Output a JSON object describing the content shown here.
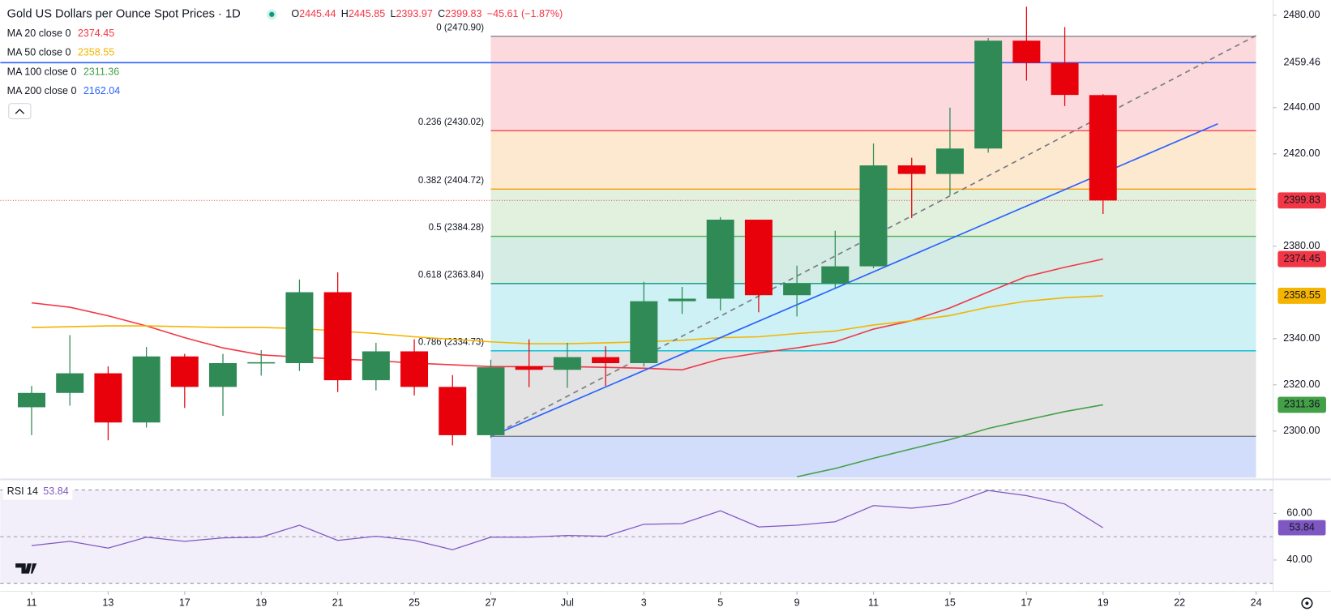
{
  "header": {
    "title": "Gold US Dollars per Ounce Spot Prices · 1D",
    "ohlc": [
      {
        "label": "O",
        "value": "2445.44"
      },
      {
        "label": "H",
        "value": "2445.85"
      },
      {
        "label": "L",
        "value": "2393.97"
      },
      {
        "label": "C",
        "value": "2399.83"
      }
    ],
    "change": "−45.61 (−1.87%)"
  },
  "chart_data": [
    {
      "type": "candlestick",
      "up_color": "#2f8a56",
      "down_color": "#e8000b",
      "candles": {
        "open": [
          2310.3,
          2316.5,
          2325.0,
          2303.7,
          2332.3,
          2319.1,
          2329.4,
          2329.4,
          2360.1,
          2322.0,
          2334.5,
          2319.1,
          2298.2,
          2328.0,
          2326.5,
          2332.0,
          2329.4,
          2356.2,
          2357.3,
          2391.5,
          2358.8,
          2363.9,
          2371.3,
          2415.0,
          2411.3,
          2422.3,
          2469.0,
          2459.4,
          2445.44
        ],
        "high": [
          2319.5,
          2341.5,
          2328.0,
          2336.4,
          2333.4,
          2333.4,
          2335.0,
          2365.6,
          2368.7,
          2338.2,
          2339.7,
          2324.2,
          2330.9,
          2339.7,
          2338.2,
          2336.7,
          2364.6,
          2362.4,
          2392.6,
          2391.5,
          2371.6,
          2386.7,
          2424.5,
          2418.3,
          2440.0,
          2470.1,
          2483.7,
          2474.9,
          2445.85
        ],
        "low": [
          2298.2,
          2311.0,
          2296.0,
          2301.5,
          2310.0,
          2306.6,
          2324.0,
          2326.0,
          2316.9,
          2317.6,
          2315.4,
          2293.8,
          2297.0,
          2319.0,
          2318.7,
          2319.5,
          2327.9,
          2350.7,
          2352.2,
          2351.4,
          2349.6,
          2361.7,
          2370.5,
          2392.2,
          2402.1,
          2420.5,
          2451.7,
          2440.7,
          2393.97
        ],
        "close": [
          2316.5,
          2325.0,
          2303.7,
          2332.3,
          2319.1,
          2329.4,
          2329.8,
          2360.1,
          2322.0,
          2334.5,
          2319.1,
          2298.2,
          2327.6,
          2326.5,
          2332.0,
          2329.4,
          2356.2,
          2357.3,
          2391.5,
          2358.8,
          2363.9,
          2371.3,
          2415.0,
          2411.3,
          2422.3,
          2469.0,
          2459.4,
          2445.5,
          2399.83
        ]
      },
      "xlim": [
        -0.82,
        32
      ],
      "ylim": [
        2279.8,
        2486.6
      ],
      "xticks": [
        {
          "value": 0,
          "label": "11"
        },
        {
          "value": 2,
          "label": "13"
        },
        {
          "value": 4,
          "label": "17"
        },
        {
          "value": 6,
          "label": "19"
        },
        {
          "value": 8,
          "label": "21"
        },
        {
          "value": 10,
          "label": "25"
        },
        {
          "value": 12,
          "label": "27"
        },
        {
          "value": 14,
          "label": "Jul"
        },
        {
          "value": 16,
          "label": "3"
        },
        {
          "value": 18,
          "label": "5"
        },
        {
          "value": 20,
          "label": "9"
        },
        {
          "value": 22,
          "label": "11"
        },
        {
          "value": 24,
          "label": "15"
        },
        {
          "value": 26,
          "label": "17"
        },
        {
          "value": 28,
          "label": "19"
        },
        {
          "value": 30,
          "label": "22"
        },
        {
          "value": 32,
          "label": "24"
        }
      ],
      "yticks": [
        {
          "value": 2480,
          "label": "2480.00"
        },
        {
          "value": 2440,
          "label": "2440.00"
        },
        {
          "value": 2420,
          "label": "2420.00"
        },
        {
          "value": 2380,
          "label": "2380.00"
        },
        {
          "value": 2340,
          "label": "2340.00"
        },
        {
          "value": 2320,
          "label": "2320.00"
        },
        {
          "value": 2300,
          "label": "2300.00"
        }
      ],
      "series": [
        {
          "name": "MA 20 close 0",
          "color": "#f23645",
          "last": 2374.45,
          "values": [
            2355.5,
            2353.6,
            2349.9,
            2345.5,
            2340.4,
            2336.0,
            2333.0,
            2332.0,
            2331.2,
            2330.5,
            2329.4,
            2328.7,
            2327.9,
            2327.9,
            2327.9,
            2327.6,
            2327.2,
            2326.5,
            2331.2,
            2333.8,
            2336.0,
            2338.6,
            2344.1,
            2347.8,
            2353.3,
            2360.2,
            2366.9,
            2370.9,
            2374.45
          ]
        },
        {
          "name": "MA 50 close 0",
          "color": "#f5b400",
          "last": 2358.55,
          "values": [
            2344.8,
            2345.2,
            2345.5,
            2345.5,
            2345.2,
            2344.8,
            2344.8,
            2344.4,
            2343.3,
            2342.2,
            2340.8,
            2339.7,
            2338.6,
            2337.8,
            2337.8,
            2338.2,
            2338.6,
            2339.3,
            2340.4,
            2340.8,
            2342.2,
            2343.3,
            2345.9,
            2347.8,
            2350.0,
            2353.6,
            2356.2,
            2357.7,
            2358.55
          ]
        },
        {
          "name": "MA 100 close 0",
          "color": "#43a047",
          "last": 2311.36,
          "values": [
            null,
            null,
            null,
            null,
            null,
            null,
            null,
            null,
            null,
            null,
            null,
            null,
            null,
            null,
            null,
            null,
            null,
            null,
            null,
            null,
            2280.2,
            2283.8,
            2288.2,
            2292.3,
            2296.3,
            2301.1,
            2304.8,
            2308.4,
            2311.36
          ]
        },
        {
          "name": "MA 200 close 0",
          "color": "#2962ff",
          "last": 2162.04
        }
      ],
      "fib_start": 12,
      "fib_levels": [
        {
          "price": 2470.9,
          "label": "0 (2470.90)",
          "color": "#787b86",
          "fill": "#fcd9dc"
        },
        {
          "price": 2430.02,
          "label": "0.236 (2430.02)",
          "color": "#f23645",
          "fill": "#fde9cf"
        },
        {
          "price": 2404.72,
          "label": "0.382 (2404.72)",
          "color": "#ff9800",
          "fill": "#e2f1de"
        },
        {
          "price": 2384.28,
          "label": "0.5 (2384.28)",
          "color": "#4caf50",
          "fill": "#d4ece4"
        },
        {
          "price": 2363.84,
          "label": "0.618 (2363.84)",
          "color": "#089981",
          "fill": "#cdf1f4"
        },
        {
          "price": 2334.73,
          "label": "0.786 (2334.73)",
          "color": "#00bcd4",
          "fill": "#e3e3e4"
        },
        {
          "price": 2297.7,
          "color": "#787b86",
          "fill": "#d2ddfb"
        }
      ],
      "trendlines": [
        {
          "color": "#2962ff",
          "dashed": false,
          "from": [
            12,
            2297.7
          ],
          "to": [
            31,
            2433
          ]
        },
        {
          "color": "#787b86",
          "dashed": true,
          "from": [
            12,
            2297.7
          ],
          "to": [
            32,
            2471.2
          ]
        }
      ],
      "hline": {
        "price": 2459.46,
        "color": "#2962ff"
      },
      "last_price_color": "#f23645"
    },
    {
      "type": "line",
      "name": "RSI 14",
      "color": "#7e57c2",
      "last": 53.84,
      "values": [
        46.2,
        48.0,
        45.1,
        49.8,
        48.0,
        49.5,
        49.8,
        54.9,
        48.4,
        50.2,
        48.4,
        44.4,
        49.8,
        49.8,
        50.5,
        50.2,
        55.3,
        55.6,
        61.1,
        54.2,
        54.9,
        56.4,
        63.3,
        62.2,
        64.0,
        69.8,
        67.6,
        64.0,
        53.84
      ],
      "ylim": [
        29.1,
        72
      ],
      "yticks": [
        {
          "value": 60,
          "label": "60.00"
        },
        {
          "value": 40,
          "label": "40.00"
        }
      ],
      "bands": [
        70,
        50,
        30
      ]
    }
  ]
}
